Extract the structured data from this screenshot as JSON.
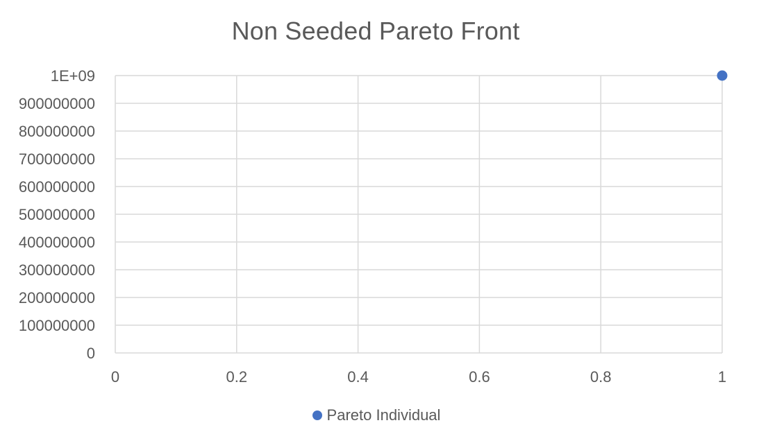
{
  "chart_data": {
    "type": "scatter",
    "title": "Non Seeded Pareto Front",
    "xlabel": "",
    "ylabel": "",
    "xlim": [
      0,
      1
    ],
    "ylim": [
      0,
      1000000000
    ],
    "x_ticks": [
      "0",
      "0.2",
      "0.4",
      "0.6",
      "0.8",
      "1"
    ],
    "y_ticks": [
      "0",
      "100000000",
      "200000000",
      "300000000",
      "400000000",
      "500000000",
      "600000000",
      "700000000",
      "800000000",
      "900000000",
      "1E+09"
    ],
    "grid": true,
    "legend_position": "bottom",
    "series": [
      {
        "name": "Pareto Individual",
        "color": "#4472c4",
        "marker": "circle",
        "points": [
          {
            "x": 1,
            "y": 1000000000
          }
        ]
      }
    ]
  }
}
